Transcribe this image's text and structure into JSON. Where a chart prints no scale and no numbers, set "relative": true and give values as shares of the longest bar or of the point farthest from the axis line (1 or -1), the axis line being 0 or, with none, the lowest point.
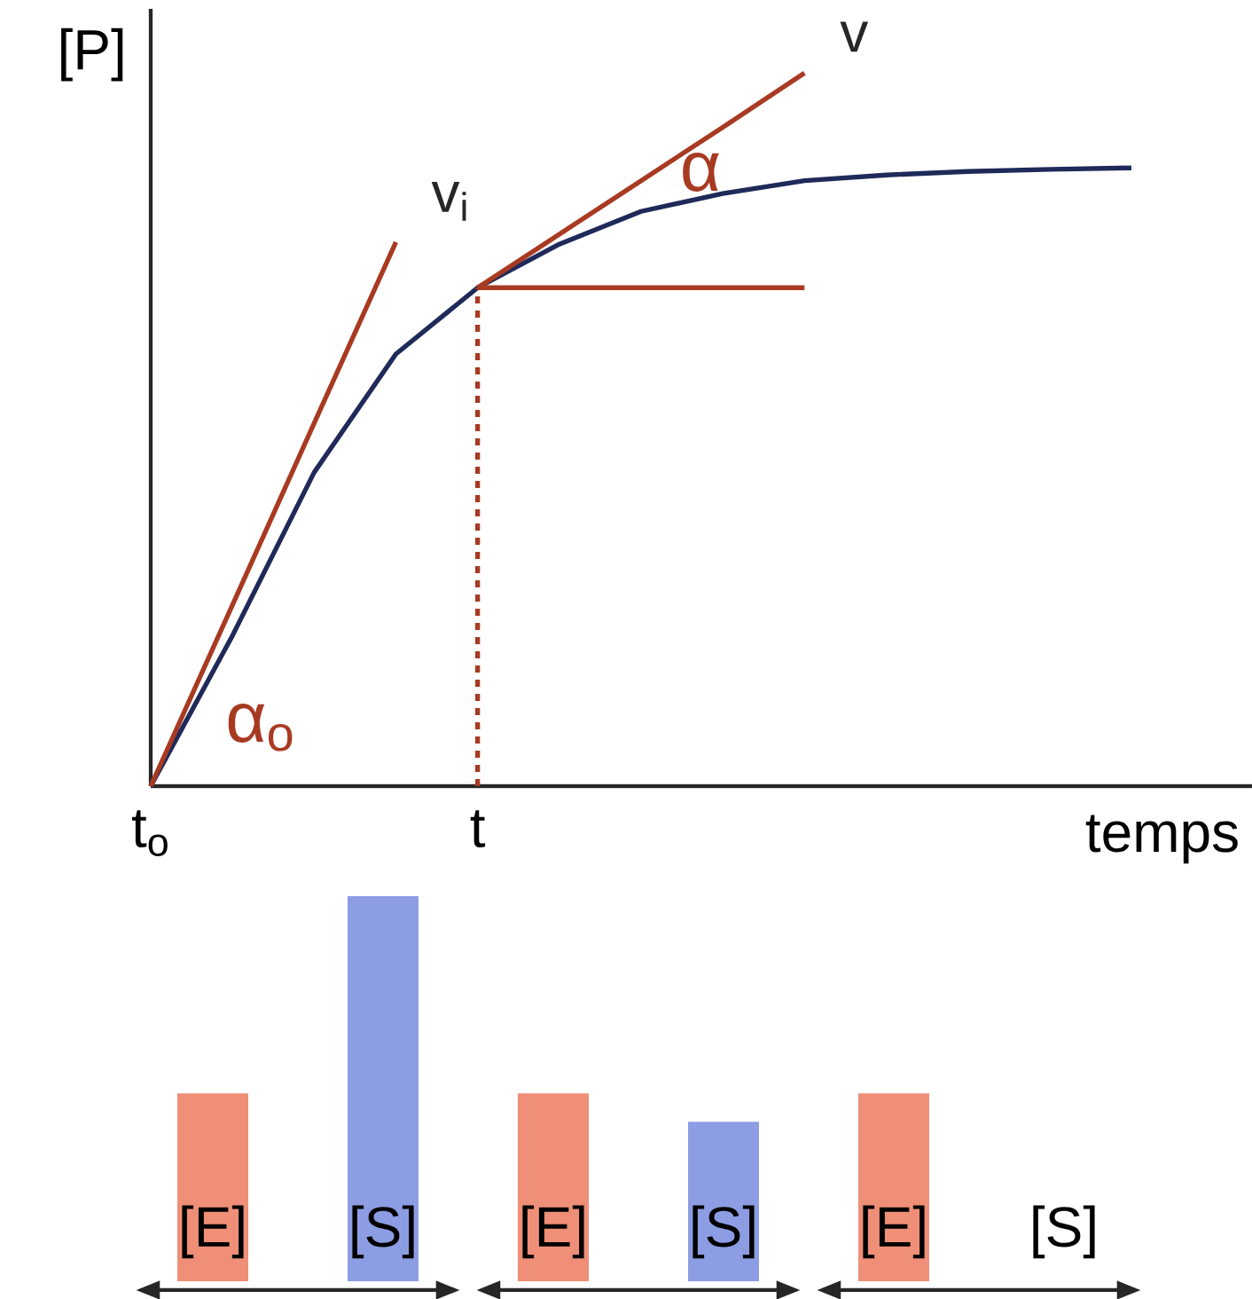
{
  "chart_data": [
    {
      "type": "line",
      "relative": true,
      "ylabel": "[P]",
      "xlabel": "temps",
      "categories": [
        "t$_{o}$",
        null,
        null,
        null,
        "t",
        null,
        null,
        null,
        null,
        null,
        null,
        null,
        null
      ],
      "series": [
        {
          "color": "#1f2a5a",
          "values": [
            0,
            0.211,
            0.44,
            0.606,
            0.699,
            0.76,
            0.806,
            0.831,
            0.849,
            0.857,
            0.862,
            0.865,
            0.867
          ]
        },
        {
          "name": "v$_{i}$",
          "color": "#a83a22",
          "values": [
            0,
            0.254,
            0.509,
            0.763,
            null,
            null,
            null,
            null,
            null,
            null,
            null,
            null,
            null
          ]
        },
        {
          "name": "v",
          "color": "#a83a22",
          "values": [
            null,
            null,
            null,
            null,
            0.699,
            0.774,
            0.849,
            0.924,
            1,
            null,
            null,
            null,
            null
          ]
        },
        {
          "color": "#a83a22",
          "values": [
            null,
            null,
            null,
            null,
            0.699,
            0.699,
            0.699,
            0.699,
            0.699,
            null,
            null,
            null,
            null
          ]
        }
      ],
      "annotations": [
        "α",
        "α$_{o}$"
      ]
    },
    {
      "type": "bar",
      "relative": true,
      "categories": [
        "[E]",
        "[S]",
        "[E]",
        "[S]",
        "[E]",
        "[S]"
      ],
      "values": [
        0.488,
        1,
        0.488,
        0.414,
        0.488,
        0
      ],
      "colors": [
        "#ef8f78",
        "#8d9de3",
        "#ef8f78",
        "#8d9de3",
        "#ef8f78",
        "#8d9de3"
      ]
    }
  ]
}
